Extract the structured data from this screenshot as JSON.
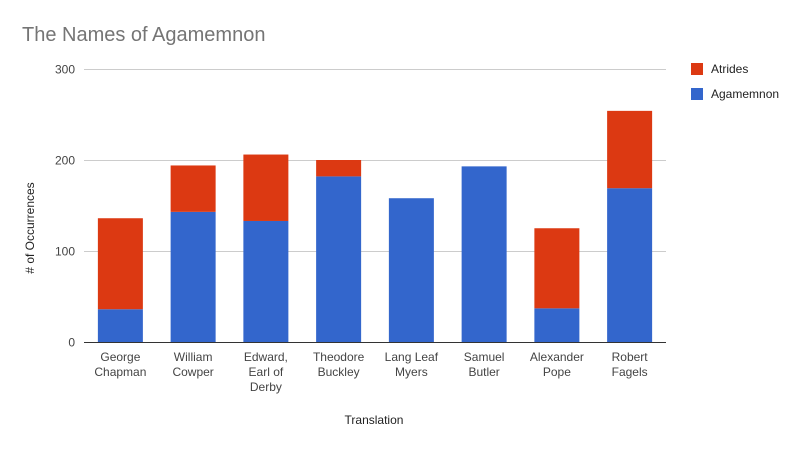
{
  "chart_data": {
    "type": "bar",
    "stacked": true,
    "title": "The Names of Agamemnon",
    "xlabel": "Translation",
    "ylabel": "# of Occurrences",
    "ylim": [
      0,
      300
    ],
    "yticks": [
      0,
      100,
      200,
      300
    ],
    "grid": true,
    "legend_position": "right",
    "categories": [
      [
        "George",
        "Chapman"
      ],
      [
        "William",
        "Cowper"
      ],
      [
        "Edward,",
        "Earl of",
        "Derby"
      ],
      [
        "Theodore",
        "Buckley"
      ],
      [
        "Lang Leaf",
        "Myers"
      ],
      [
        "Samuel",
        "Butler"
      ],
      [
        "Alexander",
        "Pope"
      ],
      [
        "Robert",
        "Fagels"
      ]
    ],
    "series": [
      {
        "name": "Agamemnon",
        "color": "#3366cc",
        "values": [
          36,
          143,
          133,
          182,
          158,
          193,
          37,
          169
        ]
      },
      {
        "name": "Atrides",
        "color": "#dc3912",
        "values": [
          100,
          51,
          73,
          18,
          0,
          0,
          88,
          85
        ]
      }
    ],
    "legend_order": [
      "Atrides",
      "Agamemnon"
    ]
  }
}
